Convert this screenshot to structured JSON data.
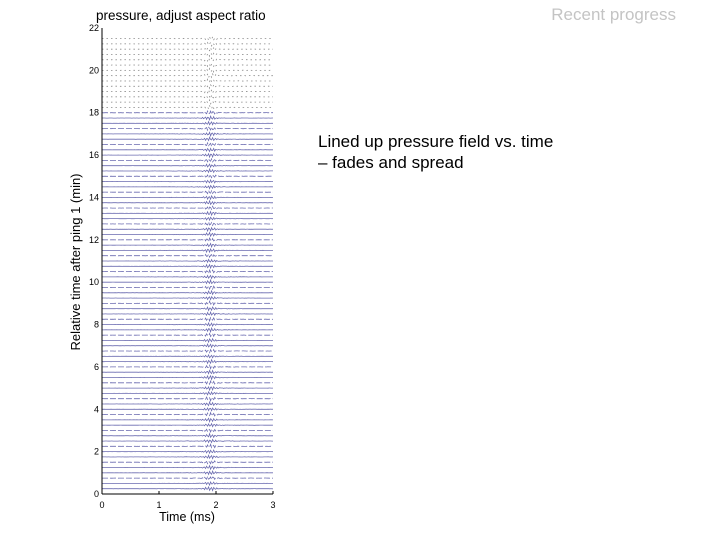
{
  "slide": {
    "header": "Recent progress",
    "caption_lines": [
      "Lined up pressure field vs. time",
      "– fades and spread"
    ]
  },
  "chart_data": {
    "type": "line",
    "title": "pressure, adjust aspect ratio",
    "xlabel": "Time (ms)",
    "ylabel": "Relative time after ping 1 (min)",
    "xlim": [
      0,
      3
    ],
    "ylim": [
      0,
      22
    ],
    "xticks": [
      0,
      1,
      2,
      3
    ],
    "yticks": [
      0,
      2,
      4,
      6,
      8,
      10,
      12,
      14,
      16,
      18,
      20,
      22
    ],
    "series_color": "#6b6bb0",
    "arrival_time_ms": 1.9,
    "trace_offsets_min": [
      0.25,
      0.5,
      0.75,
      1.0,
      1.25,
      1.5,
      1.75,
      2.0,
      2.25,
      2.5,
      2.75,
      3.0,
      3.25,
      3.5,
      3.75,
      4.0,
      4.25,
      4.5,
      4.75,
      5.0,
      5.25,
      5.5,
      5.75,
      6.0,
      6.25,
      6.5,
      6.75,
      7.0,
      7.25,
      7.5,
      7.75,
      8.0,
      8.25,
      8.5,
      8.75,
      9.0,
      9.25,
      9.5,
      9.75,
      10.0,
      10.25,
      10.5,
      10.75,
      11.0,
      11.25,
      11.5,
      11.75,
      12.0,
      12.25,
      12.5,
      12.75,
      13.0,
      13.25,
      13.5,
      13.75,
      14.0,
      14.25,
      14.5,
      14.75,
      15.0,
      15.25,
      15.5,
      15.75,
      16.0,
      16.25,
      16.5,
      16.75,
      17.0,
      17.25,
      17.5,
      17.75,
      18.0,
      18.25,
      18.5,
      18.75,
      19.0,
      19.25,
      19.5,
      19.75,
      20.0,
      20.25,
      20.5,
      20.75,
      21.0,
      21.25,
      21.5
    ]
  }
}
